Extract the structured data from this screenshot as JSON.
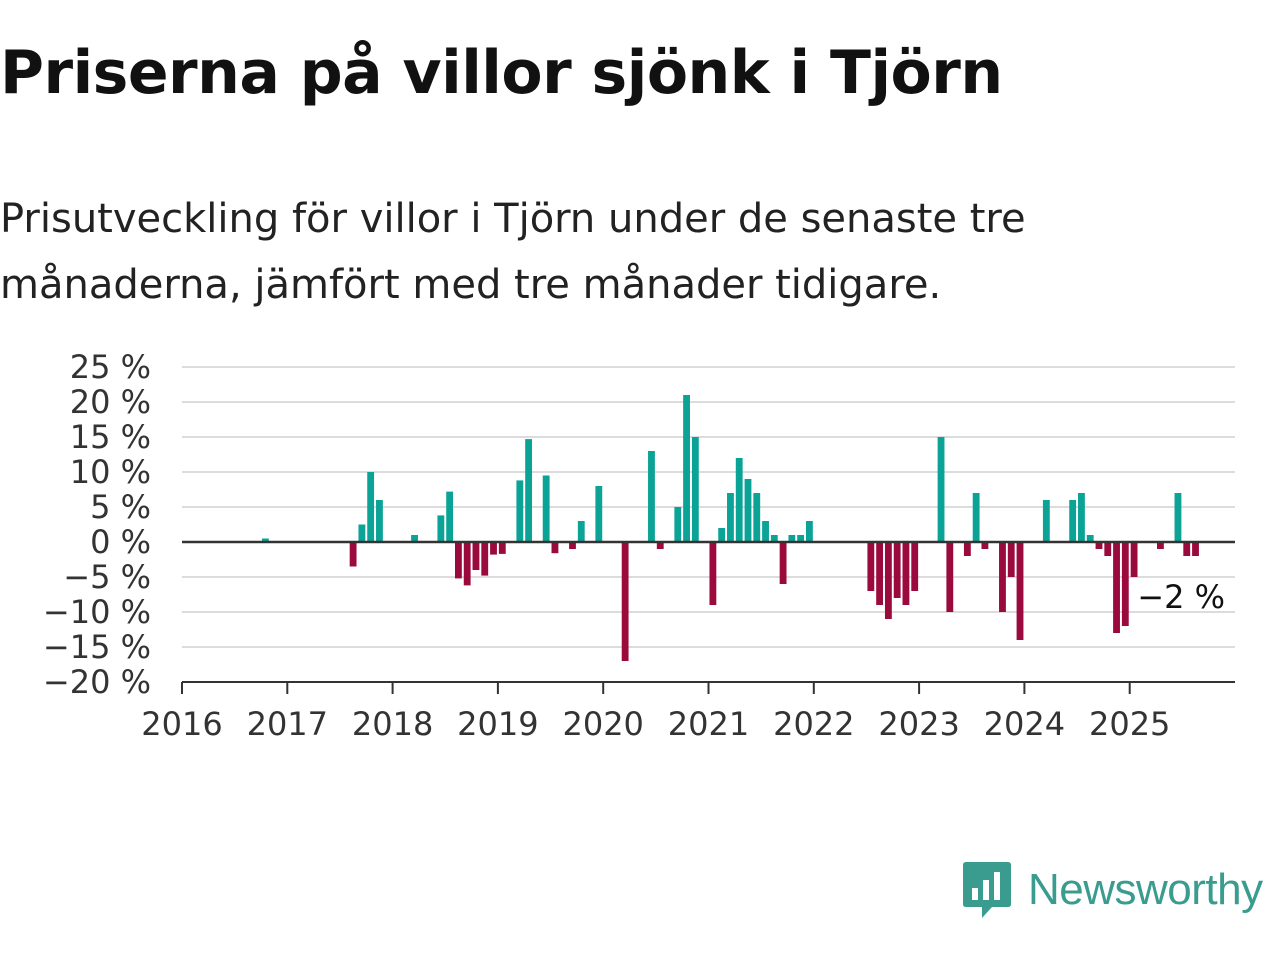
{
  "header": {
    "title": "Priserna på villor sjönk i Tjörn",
    "subtitle": "Prisutveckling för villor i Tjörn under de senaste tre månaderna, jämfört med tre månader tidigare."
  },
  "brand": {
    "name": "Newsworthy",
    "icon": "newsworthy-logo-icon",
    "color": "#3a9b8f"
  },
  "colors": {
    "positive": "#0aa396",
    "negative": "#9b0a3c",
    "grid": "#dcdcdc",
    "axis": "#333333"
  },
  "chart_data": {
    "type": "bar",
    "title": "Priserna på villor sjönk i Tjörn",
    "subtitle": "Prisutveckling för villor i Tjörn under de senaste tre månaderna, jämfört med tre månader tidigare.",
    "xlabel": "",
    "ylabel": "",
    "ylim": [
      -20,
      25
    ],
    "xlim": [
      2016,
      2026
    ],
    "yticks": [
      25,
      20,
      15,
      10,
      5,
      0,
      -5,
      -10,
      -15,
      -20
    ],
    "ytick_labels": [
      "25 %",
      "20 %",
      "15 %",
      "10 %",
      "5 %",
      "0 %",
      "−5 %",
      "−10 %",
      "−15 %",
      "−20 %"
    ],
    "xtick_labels": [
      "2016",
      "2017",
      "2018",
      "2019",
      "2020",
      "2021",
      "2022",
      "2023",
      "2024",
      "2025"
    ],
    "grid": true,
    "legend": "none",
    "annotation": {
      "text": "−2 %",
      "x": "2025-08",
      "y": -2
    },
    "series": [
      {
        "x": [
          "2016-10",
          "2017-08",
          "2017-09",
          "2017-10",
          "2017-11",
          "2018-03",
          "2018-06",
          "2018-07",
          "2018-08",
          "2018-09",
          "2018-10",
          "2018-11",
          "2018-12",
          "2019-01",
          "2019-03",
          "2019-04",
          "2019-06",
          "2019-07",
          "2019-09",
          "2019-10",
          "2019-12",
          "2020-03",
          "2020-06",
          "2020-07",
          "2020-09",
          "2020-10",
          "2020-11",
          "2021-01",
          "2021-02",
          "2021-03",
          "2021-04",
          "2021-05",
          "2021-06",
          "2021-07",
          "2021-08",
          "2021-09",
          "2021-10",
          "2021-11",
          "2021-12",
          "2022-07",
          "2022-08",
          "2022-09",
          "2022-10",
          "2022-11",
          "2022-12",
          "2023-03",
          "2023-04",
          "2023-06",
          "2023-07",
          "2023-08",
          "2023-10",
          "2023-11",
          "2023-12",
          "2024-03",
          "2024-06",
          "2024-07",
          "2024-08",
          "2024-09",
          "2024-10",
          "2024-11",
          "2024-12",
          "2025-01",
          "2025-04",
          "2025-06",
          "2025-07",
          "2025-08"
        ],
        "values": [
          0.5,
          -3.5,
          2.5,
          10,
          6,
          1,
          3.8,
          7.2,
          -5.2,
          -6.2,
          -4,
          -4.8,
          -1.8,
          -1.7,
          8.8,
          14.7,
          9.5,
          -1.6,
          -1,
          3,
          8,
          -17,
          13,
          -1,
          5,
          21,
          15,
          -9,
          2,
          7,
          12,
          9,
          7,
          3,
          1,
          -6,
          1,
          1,
          3,
          -7,
          -9,
          -11,
          -8,
          -9,
          -7,
          15,
          -10,
          -2,
          7,
          -1,
          -10,
          -5,
          -14,
          6,
          6,
          7,
          1,
          -1,
          -2,
          -13,
          -12,
          -5,
          -1,
          7,
          -2,
          -2
        ]
      }
    ]
  }
}
